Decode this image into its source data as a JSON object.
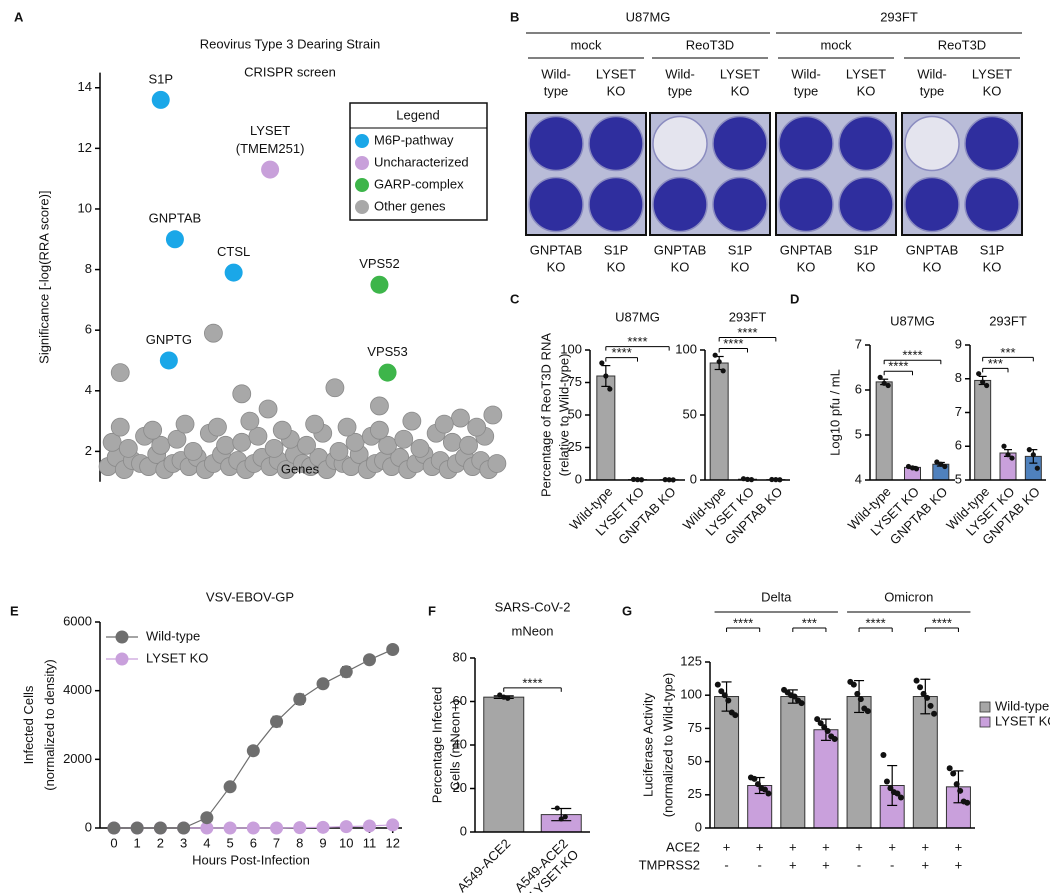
{
  "panel_labels": [
    "A",
    "B",
    "C",
    "D",
    "E",
    "F",
    "G"
  ],
  "panel_b": {
    "cell_lines": [
      "U87MG",
      "293FT"
    ],
    "treatments": [
      "mock",
      "ReoT3D",
      "mock",
      "ReoT3D"
    ],
    "top_labels": [
      [
        "Wild-",
        "type"
      ],
      [
        "LYSET",
        "KO"
      ]
    ],
    "bottom_labels": [
      [
        "GNPTAB",
        "KO"
      ],
      [
        "S1P",
        "KO"
      ]
    ]
  },
  "chart_data": [
    {
      "type": "scatter",
      "title": [
        "Reovirus Type 3 Dearing Strain",
        "CRISPR screen"
      ],
      "xlabel": "Genes",
      "ylabel": "Significance [-log(RRA score)]",
      "xlim": [
        0,
        100
      ],
      "ylim": [
        1,
        14.5
      ],
      "yticks": [
        2,
        4,
        6,
        8,
        10,
        12,
        14
      ],
      "legend_title": "Legend",
      "legend": "upper right",
      "series": [
        {
          "name": "M6P-pathway",
          "color": "#1aa7e8",
          "x": [
            15,
            18.5,
            33,
            17
          ],
          "values": [
            13.6,
            9.0,
            7.9,
            5.0
          ],
          "labels": [
            "S1P",
            "GNPTAB",
            "CTSL",
            "GNPTG"
          ]
        },
        {
          "name": "Uncharacterized",
          "color": "#c8a0da",
          "x": [
            42
          ],
          "values": [
            11.3
          ],
          "labels": [
            [
              "LYSET",
              "(TMEM251)"
            ]
          ]
        },
        {
          "name": "GARP-complex",
          "color": "#3db54a",
          "x": [
            69,
            71
          ],
          "values": [
            7.5,
            4.6
          ],
          "labels": [
            "VPS52",
            "VPS53"
          ]
        },
        {
          "name": "Other genes",
          "color": "#a8a8a8",
          "x": [
            5,
            28,
            58,
            35,
            69,
            41.5,
            97,
            89,
            2,
            4,
            6,
            8,
            10,
            12,
            14,
            16,
            18,
            20,
            22,
            24,
            26,
            28,
            30,
            32,
            34,
            36,
            38,
            40,
            42,
            44,
            46,
            48,
            50,
            52,
            54,
            56,
            58,
            60,
            62,
            64,
            66,
            68,
            70,
            72,
            74,
            76,
            78,
            80,
            82,
            84,
            86,
            88,
            90,
            92,
            94,
            96,
            98,
            3,
            7,
            11,
            15,
            19,
            23,
            27,
            31,
            35,
            39,
            43,
            47,
            51,
            55,
            59,
            63,
            67,
            71,
            75,
            79,
            83,
            87,
            91,
            95,
            5,
            13,
            21,
            29,
            37,
            45,
            53,
            61,
            69,
            77,
            85,
            93
          ],
          "values": [
            4.6,
            5.9,
            4.1,
            3.9,
            3.5,
            3.4,
            3.2,
            3.1,
            1.5,
            1.8,
            1.4,
            1.7,
            1.6,
            1.5,
            1.9,
            1.4,
            1.6,
            1.7,
            1.5,
            1.8,
            1.4,
            1.6,
            1.9,
            1.5,
            1.7,
            1.4,
            1.6,
            1.8,
            1.5,
            1.7,
            1.4,
            1.9,
            1.6,
            1.5,
            1.8,
            1.4,
            1.7,
            1.6,
            1.5,
            1.9,
            1.4,
            1.6,
            1.7,
            1.5,
            1.8,
            1.4,
            1.6,
            1.9,
            1.5,
            1.7,
            1.4,
            1.6,
            1.8,
            1.5,
            1.7,
            1.4,
            1.6,
            2.3,
            2.1,
            2.5,
            2.2,
            2.4,
            2.0,
            2.6,
            2.2,
            2.3,
            2.5,
            2.1,
            2.4,
            2.2,
            2.6,
            2.0,
            2.3,
            2.5,
            2.2,
            2.4,
            2.1,
            2.6,
            2.3,
            2.2,
            2.5,
            2.8,
            2.7,
            2.9,
            2.8,
            3.0,
            2.7,
            2.9,
            2.8,
            2.7,
            3.0,
            2.9,
            2.8
          ]
        }
      ]
    },
    {
      "type": "bar",
      "title": "U87MG",
      "ylabel": [
        "Percentage of ReoT3D RNA",
        "(relative to Wild-type)"
      ],
      "categories": [
        "Wild-type",
        "LYSET KO",
        "GNPTAB KO"
      ],
      "values": [
        80,
        0.3,
        0.2
      ],
      "errors": [
        8,
        0.2,
        0.1
      ],
      "points": [
        [
          90,
          80,
          70
        ],
        [
          0.5,
          0.3,
          0.2
        ],
        [
          0.3,
          0.2,
          0.1
        ]
      ],
      "colors": [
        "#a6a6a6",
        "#a6a6a6",
        "#a6a6a6"
      ],
      "ylim": [
        0,
        100
      ],
      "yticks": [
        0,
        25,
        50,
        75,
        100
      ],
      "significance": [
        {
          "pair": [
            0,
            1
          ],
          "label": "****"
        },
        {
          "pair": [
            0,
            2
          ],
          "label": "****"
        }
      ]
    },
    {
      "type": "bar",
      "title": "293FT",
      "categories": [
        "Wild-type",
        "LYSET KO",
        "GNPTAB KO"
      ],
      "values": [
        90,
        0.6,
        0.3
      ],
      "errors": [
        5,
        0.4,
        0.1
      ],
      "points": [
        [
          96,
          91,
          84
        ],
        [
          1,
          0.5,
          0.3
        ],
        [
          0.4,
          0.3,
          0.2
        ]
      ],
      "colors": [
        "#a6a6a6",
        "#a6a6a6",
        "#a6a6a6"
      ],
      "ylim": [
        0,
        100
      ],
      "yticks": [
        0,
        50,
        100
      ],
      "significance": [
        {
          "pair": [
            0,
            1
          ],
          "label": "****"
        },
        {
          "pair": [
            0,
            2
          ],
          "label": "****"
        }
      ]
    },
    {
      "type": "bar",
      "title": "U87MG",
      "ylabel": "Log10 pfu / mL",
      "categories": [
        "Wild-type",
        "LYSET KO",
        "GNPTAB KO"
      ],
      "values": [
        6.18,
        4.28,
        4.35
      ],
      "errors": [
        0.06,
        0.02,
        0.04
      ],
      "points": [
        [
          6.28,
          6.15,
          6.1
        ],
        [
          4.3,
          4.27,
          4.25
        ],
        [
          4.4,
          4.35,
          4.3
        ]
      ],
      "colors": [
        "#a6a6a6",
        "#c9a0dc",
        "#4f81bd"
      ],
      "ylim": [
        4,
        7
      ],
      "yticks": [
        4,
        5,
        6,
        7
      ],
      "significance": [
        {
          "pair": [
            0,
            1
          ],
          "label": "****"
        },
        {
          "pair": [
            0,
            2
          ],
          "label": "****"
        }
      ]
    },
    {
      "type": "bar",
      "title": "293FT",
      "categories": [
        "Wild-type",
        "LYSET KO",
        "GNPTAB KO"
      ],
      "values": [
        7.95,
        5.8,
        5.7
      ],
      "errors": [
        0.12,
        0.1,
        0.2
      ],
      "points": [
        [
          8.15,
          7.9,
          7.8
        ],
        [
          6.0,
          5.75,
          5.65
        ],
        [
          5.9,
          5.75,
          5.35
        ]
      ],
      "colors": [
        "#a6a6a6",
        "#c9a0dc",
        "#4f81bd"
      ],
      "ylim": [
        5,
        9
      ],
      "yticks": [
        5,
        6,
        7,
        8,
        9
      ],
      "significance": [
        {
          "pair": [
            0,
            1
          ],
          "label": "***"
        },
        {
          "pair": [
            0,
            2
          ],
          "label": "***"
        }
      ]
    },
    {
      "type": "line",
      "title": "VSV-EBOV-GP",
      "xlabel": "Hours Post-Infection",
      "ylabel": [
        "Infected Cells",
        "(normalized to density)"
      ],
      "x": [
        0,
        1,
        2,
        3,
        4,
        5,
        6,
        7,
        8,
        9,
        10,
        11,
        12
      ],
      "xlim": [
        -0.6,
        12.4
      ],
      "xticks": [
        0,
        1,
        2,
        3,
        4,
        5,
        6,
        7,
        8,
        9,
        10,
        11,
        12
      ],
      "ylim": [
        0,
        6000
      ],
      "yticks": [
        0,
        2000,
        4000,
        6000
      ],
      "legend": "upper left",
      "series": [
        {
          "name": "Wild-type",
          "color": "#6e6e6e",
          "values": [
            0,
            0,
            0,
            0,
            300,
            1200,
            2250,
            3100,
            3750,
            4200,
            4550,
            4900,
            5200
          ],
          "errors": [
            0,
            0,
            0,
            0,
            30,
            40,
            60,
            150,
            150,
            100,
            150,
            100,
            80
          ]
        },
        {
          "name": "LYSET KO",
          "color": "#c9a0dc",
          "values": [
            0,
            0,
            0,
            0,
            0,
            0,
            0,
            0,
            10,
            20,
            40,
            60,
            90
          ]
        }
      ]
    },
    {
      "type": "bar",
      "title": [
        "SARS-CoV-2",
        "mNeon"
      ],
      "ylabel": [
        "Percentage Infected",
        "Cells (mNeon+)"
      ],
      "categories": [
        "A549-ACE2",
        [
          "A549-ACE2",
          "LYSET-KO"
        ]
      ],
      "values": [
        62,
        8
      ],
      "errors": [
        0.6,
        2.8
      ],
      "points": [
        [
          63,
          62,
          61.5
        ],
        [
          11,
          6,
          7
        ]
      ],
      "colors": [
        "#a6a6a6",
        "#c9a0dc"
      ],
      "ylim": [
        0,
        80
      ],
      "yticks": [
        0,
        20,
        40,
        60,
        80
      ],
      "significance": [
        {
          "pair": [
            0,
            1
          ],
          "label": "****"
        }
      ]
    },
    {
      "type": "grouped_bar",
      "ylabel": [
        "Luciferase Activity",
        "(normalized to Wild-type)"
      ],
      "ylim": [
        0,
        125
      ],
      "yticks": [
        0,
        25,
        50,
        75,
        100,
        125
      ],
      "legend": "right",
      "groups": [
        {
          "label": "Delta",
          "slots": [
            0,
            3
          ]
        },
        {
          "label": "Omicron",
          "slots": [
            4,
            7
          ]
        }
      ],
      "conditions": [
        {
          "name": "ACE2",
          "signs": [
            "+",
            "+",
            "+",
            "+",
            "+",
            "+",
            "+",
            "+"
          ]
        },
        {
          "name": "TMPRSS2",
          "signs": [
            "-",
            "-",
            "+",
            "+",
            "-",
            "-",
            "+",
            "+"
          ]
        }
      ],
      "series": [
        {
          "name": "Wild-type",
          "color": "#a6a6a6",
          "values": [
            99,
            99,
            99,
            99
          ],
          "errors": [
            11,
            5,
            12,
            13
          ],
          "points": [
            [
              108,
              103,
              100,
              96,
              87,
              85
            ],
            [
              104,
              102,
              100,
              99,
              96,
              94
            ],
            [
              110,
              108,
              101,
              97,
              90,
              88
            ],
            [
              111,
              106,
              101,
              98,
              92,
              86
            ]
          ]
        },
        {
          "name": "LYSET KO",
          "color": "#c9a0dc",
          "values": [
            32,
            74,
            32,
            31
          ],
          "errors": [
            6,
            8,
            15,
            12
          ],
          "points": [
            [
              38,
              37,
              33,
              30,
              29,
              26
            ],
            [
              82,
              79,
              76,
              73,
              69,
              67
            ],
            [
              55,
              35,
              30,
              27,
              26,
              23
            ],
            [
              45,
              41,
              33,
              28,
              20,
              19
            ]
          ]
        }
      ],
      "significance": [
        {
          "pair": [
            0,
            1
          ],
          "label": "****"
        },
        {
          "pair": [
            2,
            3
          ],
          "label": "***"
        },
        {
          "pair": [
            4,
            5
          ],
          "label": "****"
        },
        {
          "pair": [
            6,
            7
          ],
          "label": "****"
        }
      ]
    }
  ]
}
